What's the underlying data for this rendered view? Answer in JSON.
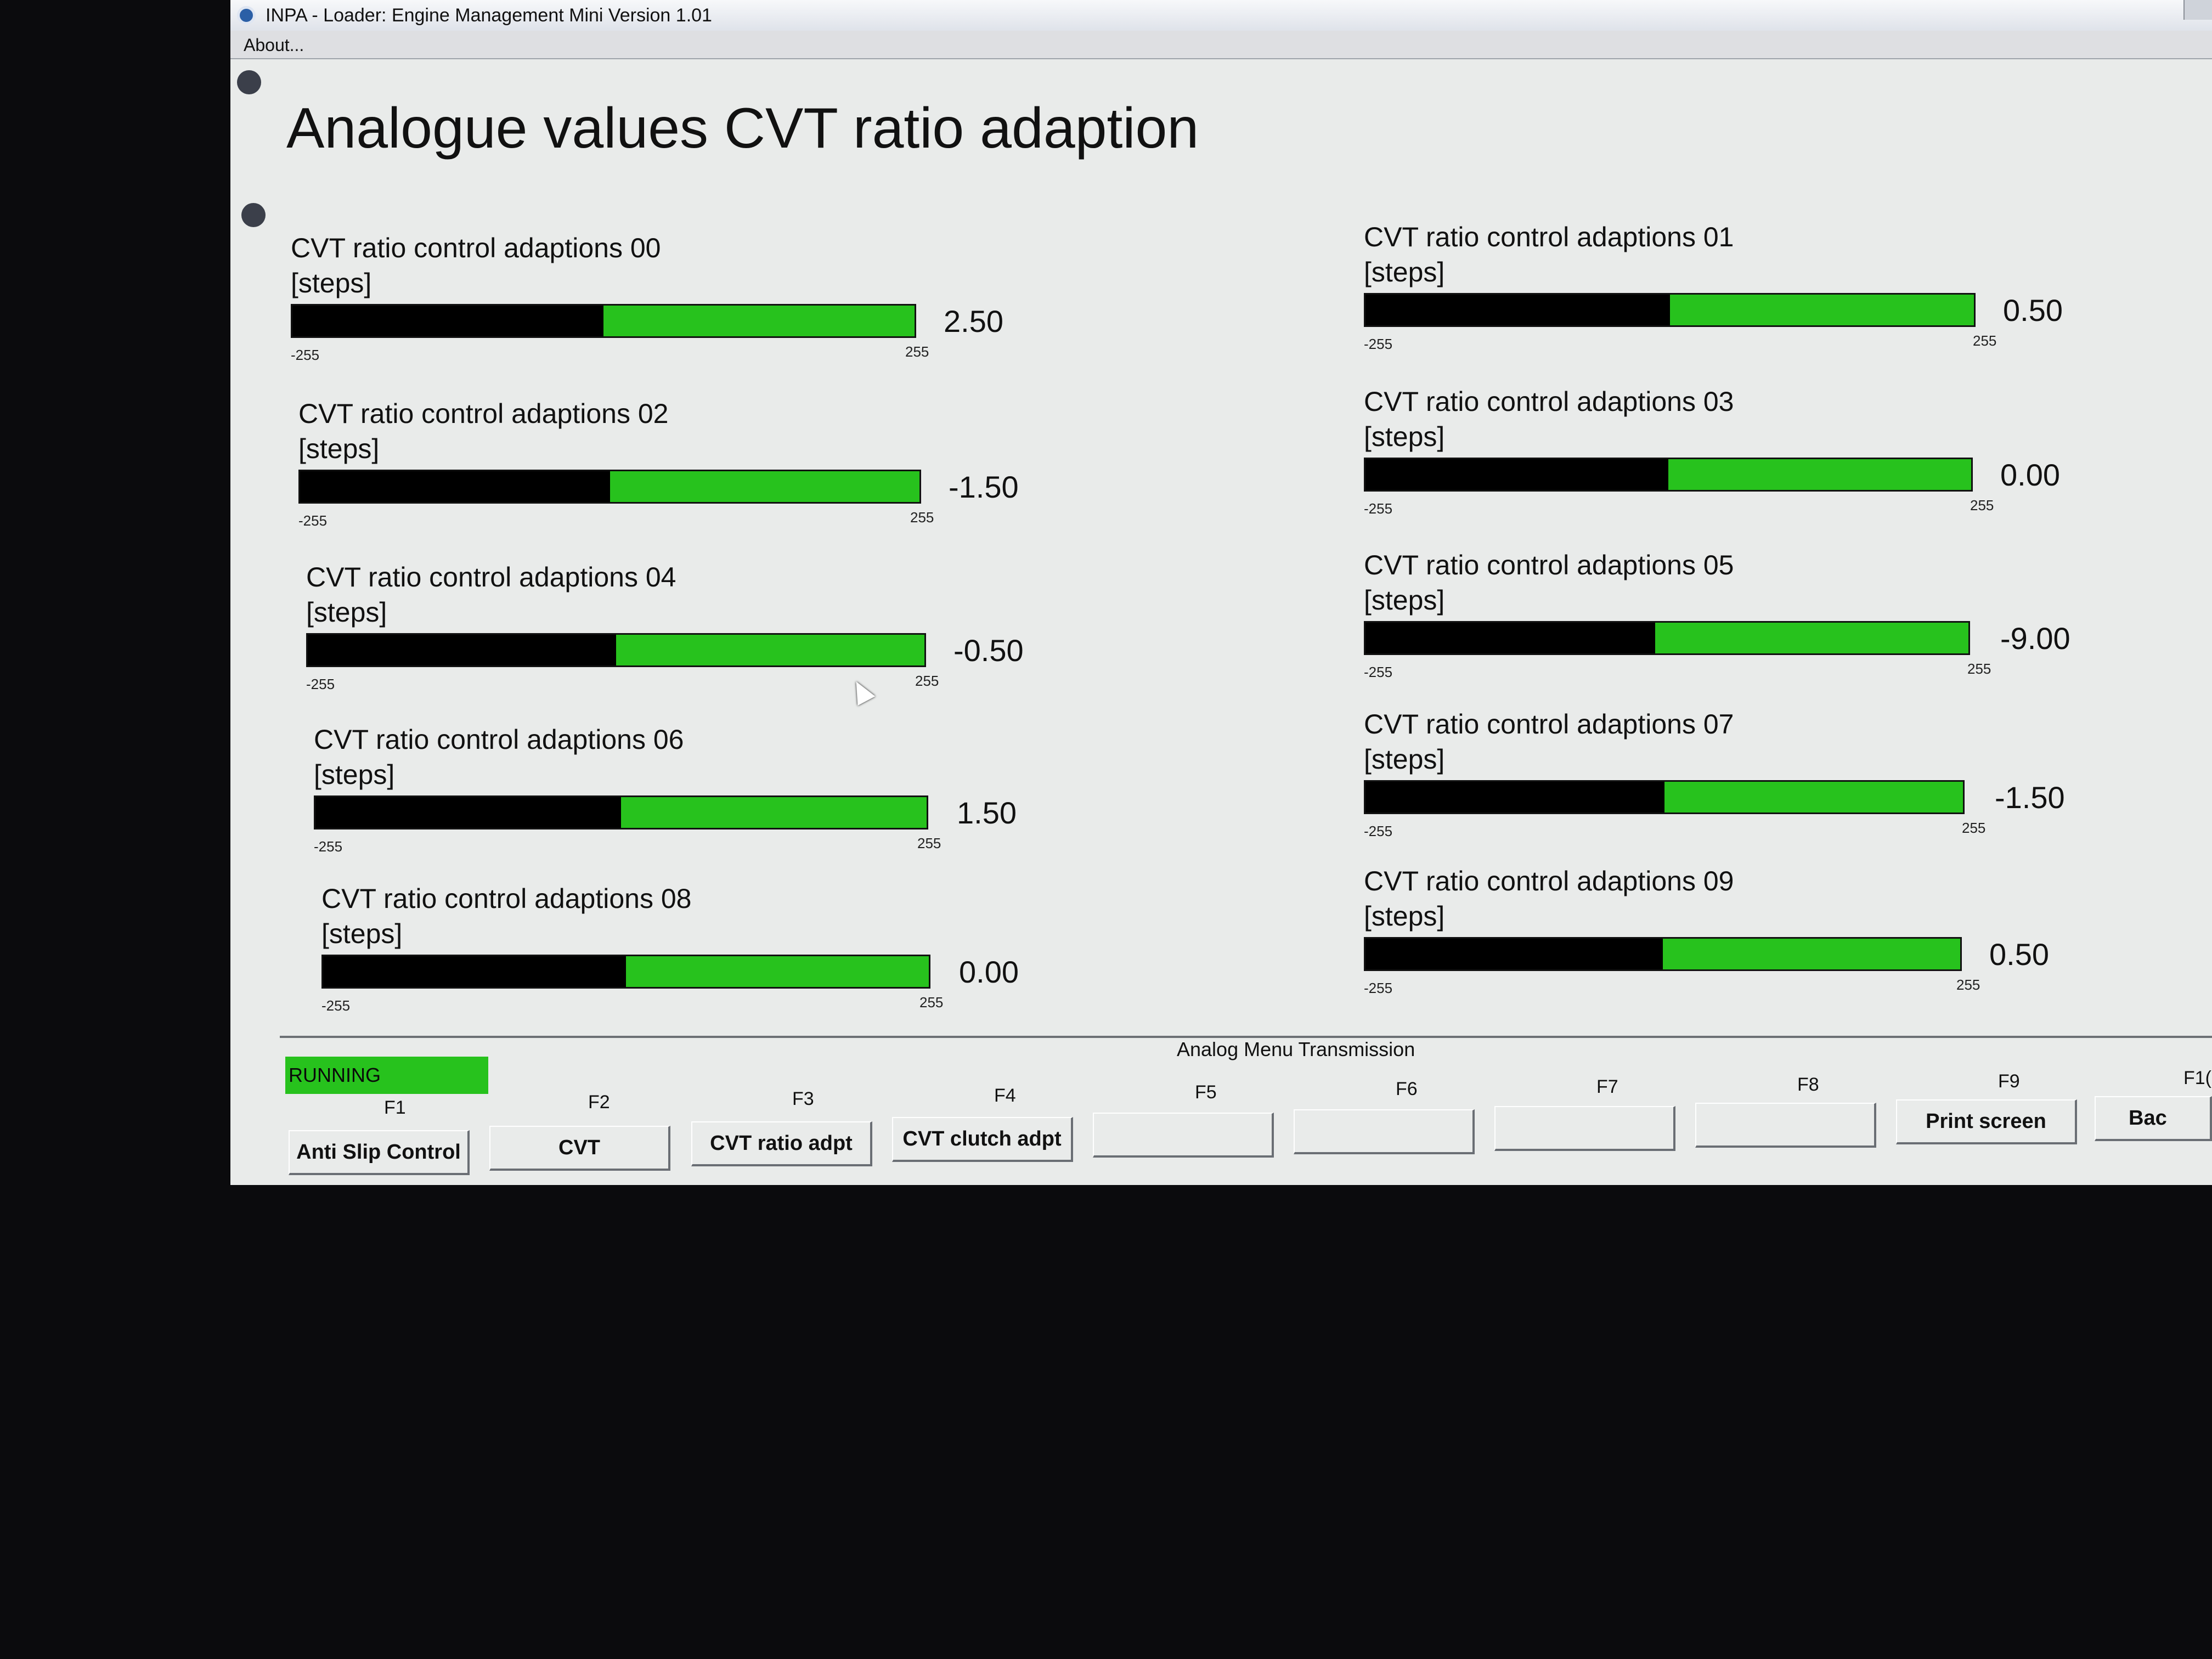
{
  "window": {
    "title": "INPA - Loader: Engine Management Mini Version 1.01"
  },
  "menu": {
    "about": "About..."
  },
  "page": {
    "title": "Analogue values CVT ratio adaption"
  },
  "meters": [
    {
      "label": "CVT ratio control adaptions 00",
      "unit": "[steps]",
      "value": "2.50",
      "min": "-255",
      "max": "255",
      "fill_fraction": 0.5
    },
    {
      "label": "CVT ratio control adaptions 01",
      "unit": "[steps]",
      "value": "0.50",
      "min": "-255",
      "max": "255",
      "fill_fraction": 0.5
    },
    {
      "label": "CVT ratio control adaptions 02",
      "unit": "[steps]",
      "value": "-1.50",
      "min": "-255",
      "max": "255",
      "fill_fraction": 0.5
    },
    {
      "label": "CVT ratio control adaptions 03",
      "unit": "[steps]",
      "value": "0.00",
      "min": "-255",
      "max": "255",
      "fill_fraction": 0.5
    },
    {
      "label": "CVT ratio control adaptions 04",
      "unit": "[steps]",
      "value": "-0.50",
      "min": "-255",
      "max": "255",
      "fill_fraction": 0.5
    },
    {
      "label": "CVT ratio control adaptions 05",
      "unit": "[steps]",
      "value": "-9.00",
      "min": "-255",
      "max": "255",
      "fill_fraction": 0.48
    },
    {
      "label": "CVT ratio control adaptions 06",
      "unit": "[steps]",
      "value": "1.50",
      "min": "-255",
      "max": "255",
      "fill_fraction": 0.5
    },
    {
      "label": "CVT ratio control adaptions 07",
      "unit": "[steps]",
      "value": "-1.50",
      "min": "-255",
      "max": "255",
      "fill_fraction": 0.5
    },
    {
      "label": "CVT ratio control adaptions 08",
      "unit": "[steps]",
      "value": "0.00",
      "min": "-255",
      "max": "255",
      "fill_fraction": 0.5
    },
    {
      "label": "CVT ratio control adaptions 09",
      "unit": "[steps]",
      "value": "0.50",
      "min": "-255",
      "max": "255",
      "fill_fraction": 0.5
    }
  ],
  "status": {
    "running": "RUNNING",
    "menu_caption": "Analog Menu Transmission"
  },
  "function_keys": [
    {
      "key": "F1",
      "label": "Anti Slip Control"
    },
    {
      "key": "F2",
      "label": "CVT"
    },
    {
      "key": "F3",
      "label": "CVT ratio adpt"
    },
    {
      "key": "F4",
      "label": "CVT clutch adpt"
    },
    {
      "key": "F5",
      "label": ""
    },
    {
      "key": "F6",
      "label": ""
    },
    {
      "key": "F7",
      "label": ""
    },
    {
      "key": "F8",
      "label": ""
    },
    {
      "key": "F9",
      "label": "Print screen"
    },
    {
      "key": "F1(",
      "label": "Bac"
    }
  ],
  "colors": {
    "bar_green": "#27c21d",
    "bar_fill": "#000000",
    "screen_bg": "#e9ebea"
  }
}
